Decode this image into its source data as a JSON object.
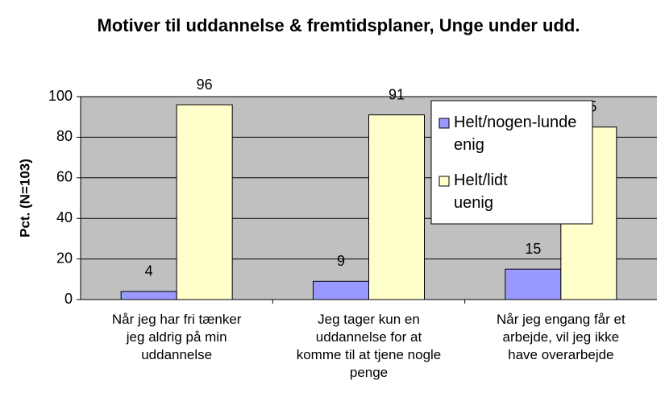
{
  "chart_data": {
    "type": "bar",
    "title": "Motiver til uddannelse & fremtidsplaner, Unge under udd.",
    "y_label": "Pct. (N=103)",
    "categories": [
      "Når jeg har fri tænker\njeg aldrig på min\nuddannelse",
      "Jeg tager kun en\nuddannelse for at\nkomme til at tjene nogle\npenge",
      "Når jeg engang får et\narbejde, vil jeg ikke\nhave overarbejde"
    ],
    "series": [
      {
        "name": "Helt/nogen-lunde enig",
        "color": "#9999ff",
        "values": [
          4,
          9,
          15
        ]
      },
      {
        "name": "Helt/lidt uenig",
        "color": "#ffffcc",
        "values": [
          96,
          91,
          85
        ]
      }
    ],
    "ylim": [
      0,
      100
    ],
    "yticks": [
      0,
      20,
      40,
      60,
      80,
      100
    ],
    "grid": true,
    "legend": "upper right"
  }
}
